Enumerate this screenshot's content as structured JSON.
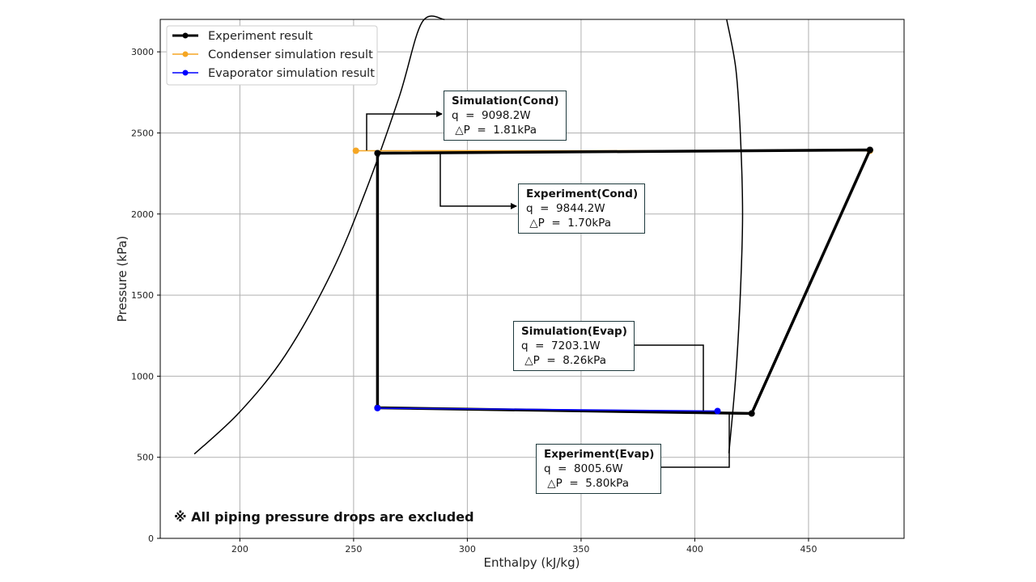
{
  "chart_data": {
    "type": "line",
    "xlabel": "Enthalpy (kJ/kg)",
    "ylabel": "Pressure (kPa)",
    "xlim": [
      165,
      492
    ],
    "ylim": [
      0,
      3200
    ],
    "xticks": [
      200,
      250,
      300,
      350,
      400,
      450
    ],
    "yticks": [
      0,
      500,
      1000,
      1500,
      2000,
      2500,
      3000
    ],
    "grid": true,
    "legend_position": "top-left",
    "series": [
      {
        "name": "Experiment result",
        "color": "#000000",
        "x": [
          477,
          260.5,
          260.5,
          425,
          477
        ],
        "y": [
          2395,
          2375,
          805,
          770,
          2395
        ]
      },
      {
        "name": "Condenser simulation result",
        "color": "#f5a623",
        "x": [
          251,
          477
        ],
        "y": [
          2390,
          2390
        ]
      },
      {
        "name": "Evaporator simulation result",
        "color": "#0000ff",
        "x": [
          260.5,
          410
        ],
        "y": [
          803,
          785
        ]
      }
    ],
    "saturation_dome": {
      "liquid_line": {
        "x": [
          180,
          200,
          220,
          240,
          255,
          270,
          280,
          290
        ],
        "y": [
          520,
          780,
          1130,
          1630,
          2130,
          2720,
          3180,
          3200
        ]
      },
      "vapor_line": {
        "x": [
          415,
          418,
          420,
          421,
          420,
          418,
          414
        ],
        "y": [
          525,
          1000,
          1500,
          2000,
          2500,
          2900,
          3200
        ]
      }
    },
    "annotations": [
      {
        "id": "sim-cond",
        "title": "Simulation(Cond)",
        "line1": "q  =  9098.2W",
        "line2": " △P  =  1.81kPa"
      },
      {
        "id": "exp-cond",
        "title": "Experiment(Cond)",
        "line1": "q  =  9844.2W",
        "line2": " △P  =  1.70kPa"
      },
      {
        "id": "sim-evap",
        "title": "Simulation(Evap)",
        "line1": "q  =  7203.1W",
        "line2": " △P  =  8.26kPa"
      },
      {
        "id": "exp-evap",
        "title": "Experiment(Evap)",
        "line1": "q  =  8005.6W",
        "line2": " △P  =  5.80kPa"
      }
    ],
    "note": "※ All piping pressure drops are excluded"
  }
}
